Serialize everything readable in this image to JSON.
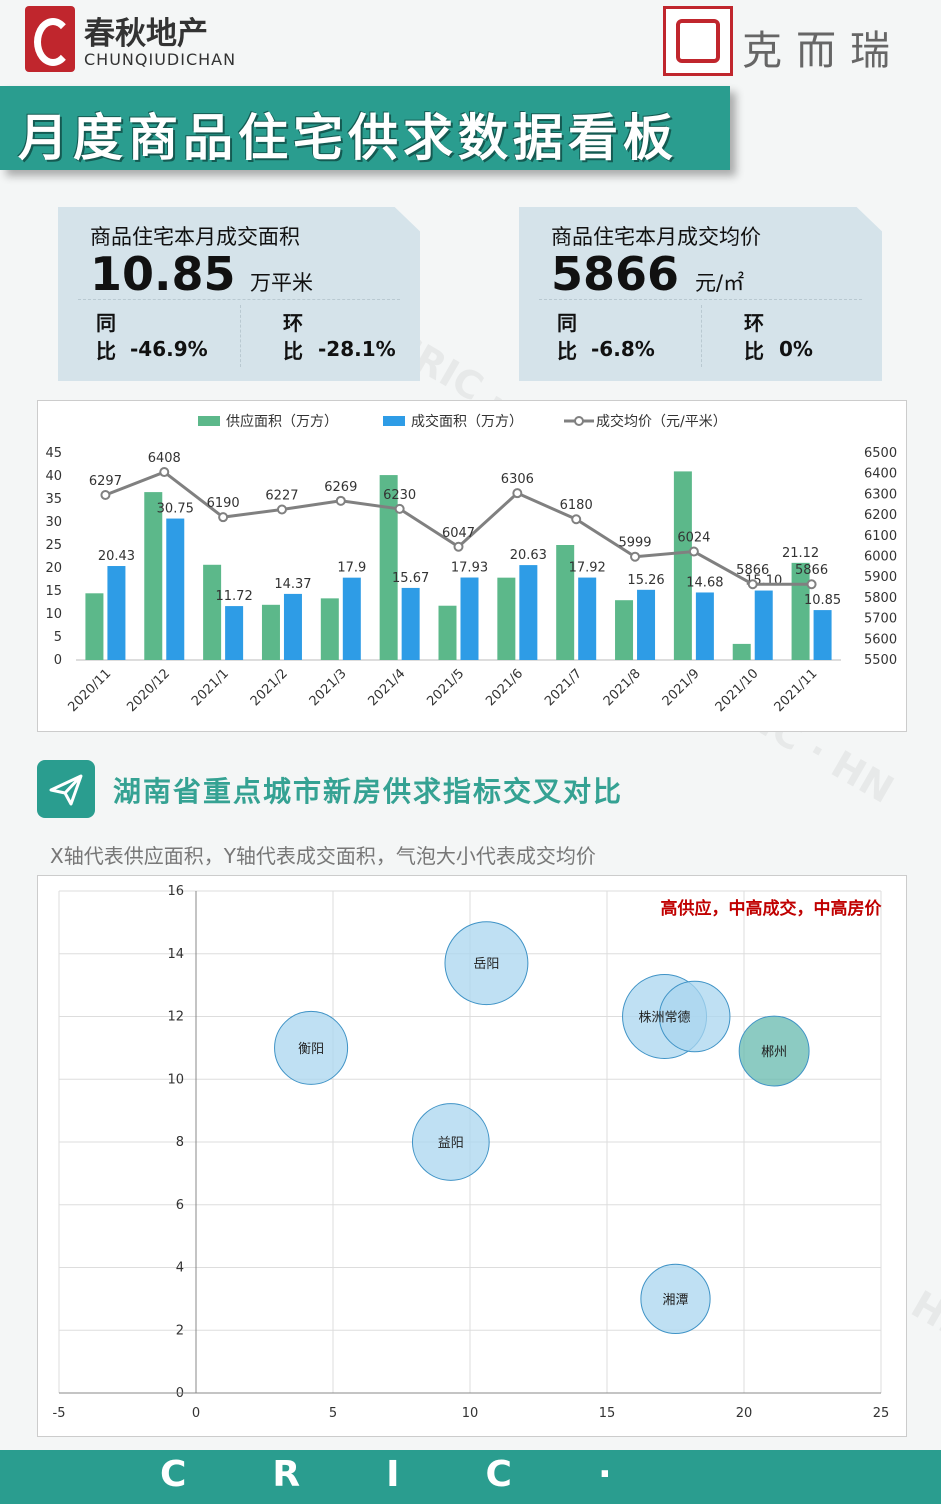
{
  "header": {
    "brand": "春秋地产",
    "brand_latin": "CHUNQIUDICHAN",
    "partner": "克而瑞"
  },
  "banner": "月度商品住宅供求数据看板",
  "cards": [
    {
      "title": "商品住宅本月成交面积",
      "value": "10.85",
      "unit": "万平米",
      "yoy_label": "同比",
      "yoy": "-46.9%",
      "mom_label": "环比",
      "mom": "-28.1%"
    },
    {
      "title": "商品住宅本月成交均价",
      "value": "5866",
      "unit": "元/㎡",
      "yoy_label": "同比",
      "yoy": "-6.8%",
      "mom_label": "环比",
      "mom": "0%"
    }
  ],
  "watermark": "CRIC · HN",
  "footer": "CRIC·",
  "chart_data": [
    {
      "type": "combo",
      "legend_position": "top",
      "categories": [
        "2020/11",
        "2020/12",
        "2021/1",
        "2021/2",
        "2021/3",
        "2021/4",
        "2021/5",
        "2021/6",
        "2021/7",
        "2021/8",
        "2021/9",
        "2021/10",
        "2021/11"
      ],
      "ylim": [
        0,
        45
      ],
      "yticks": [
        0,
        5,
        10,
        15,
        20,
        25,
        30,
        35,
        40,
        45
      ],
      "y2lim": [
        5500,
        6500
      ],
      "y2ticks": [
        5500,
        5600,
        5700,
        5800,
        5900,
        6000,
        6100,
        6200,
        6300,
        6400,
        6500
      ],
      "series": [
        {
          "name": "供应面积（万方）",
          "type": "bar",
          "color": "#5cb88a",
          "values": [
            14.5,
            36.5,
            20.7,
            12,
            13.4,
            40.2,
            11.8,
            17.9,
            25,
            13,
            41,
            3.5,
            21.12
          ],
          "value_labels": [
            null,
            null,
            null,
            null,
            null,
            null,
            null,
            null,
            null,
            null,
            null,
            null,
            "21.12"
          ]
        },
        {
          "name": "成交面积（万方）",
          "type": "bar",
          "color": "#2e9ce6",
          "values": [
            20.43,
            30.75,
            11.72,
            14.37,
            17.9,
            15.67,
            17.93,
            20.63,
            17.92,
            15.26,
            14.68,
            15.1,
            10.85
          ],
          "value_labels": [
            "20.43",
            "30.75",
            "11.72",
            "14.37",
            "17.9",
            "15.67",
            "17.93",
            "20.63",
            "17.92",
            "15.26",
            "14.68",
            "15.10",
            "10.85"
          ]
        },
        {
          "name": "成交均价（元/平米）",
          "type": "line",
          "axis": "y2",
          "color": "#808080",
          "values": [
            6297,
            6408,
            6190,
            6227,
            6269,
            6230,
            6047,
            6306,
            6180,
            5999,
            6024,
            5866,
            5866
          ]
        }
      ]
    },
    {
      "type": "bubble",
      "title": "湖南省重点城市新房供求指标交叉对比",
      "subtitle": "X轴代表供应面积，Y轴代表成交面积，气泡大小代表成交均价",
      "annotation": "高供应，中高成交，中高房价",
      "xlim": [
        -5,
        25
      ],
      "xticks": [
        -5,
        0,
        5,
        10,
        15,
        20,
        25
      ],
      "ylim": [
        0,
        16
      ],
      "yticks": [
        0,
        2,
        4,
        6,
        8,
        10,
        12,
        14,
        16
      ],
      "grid": true,
      "points": [
        {
          "label": "衡阳",
          "x": 4.2,
          "y": 11,
          "size": 5900,
          "color": "#a9d6ef"
        },
        {
          "label": "岳阳",
          "x": 10.6,
          "y": 13.7,
          "size": 7600,
          "color": "#a9d6ef"
        },
        {
          "label": "益阳",
          "x": 9.3,
          "y": 8,
          "size": 6500,
          "color": "#a9d6ef"
        },
        {
          "label": "株洲常德",
          "x": 17.1,
          "y": 12,
          "size": 7800,
          "color": "#a9d6ef"
        },
        {
          "label": null,
          "x": 18.2,
          "y": 12,
          "size": 5500,
          "color": "#a9d6ef"
        },
        {
          "label": "郴州",
          "x": 21.1,
          "y": 10.9,
          "size": 5400,
          "color": "#66b9ad"
        },
        {
          "label": "湘潭",
          "x": 17.5,
          "y": 3,
          "size": 5300,
          "color": "#a9d6ef"
        }
      ]
    }
  ]
}
